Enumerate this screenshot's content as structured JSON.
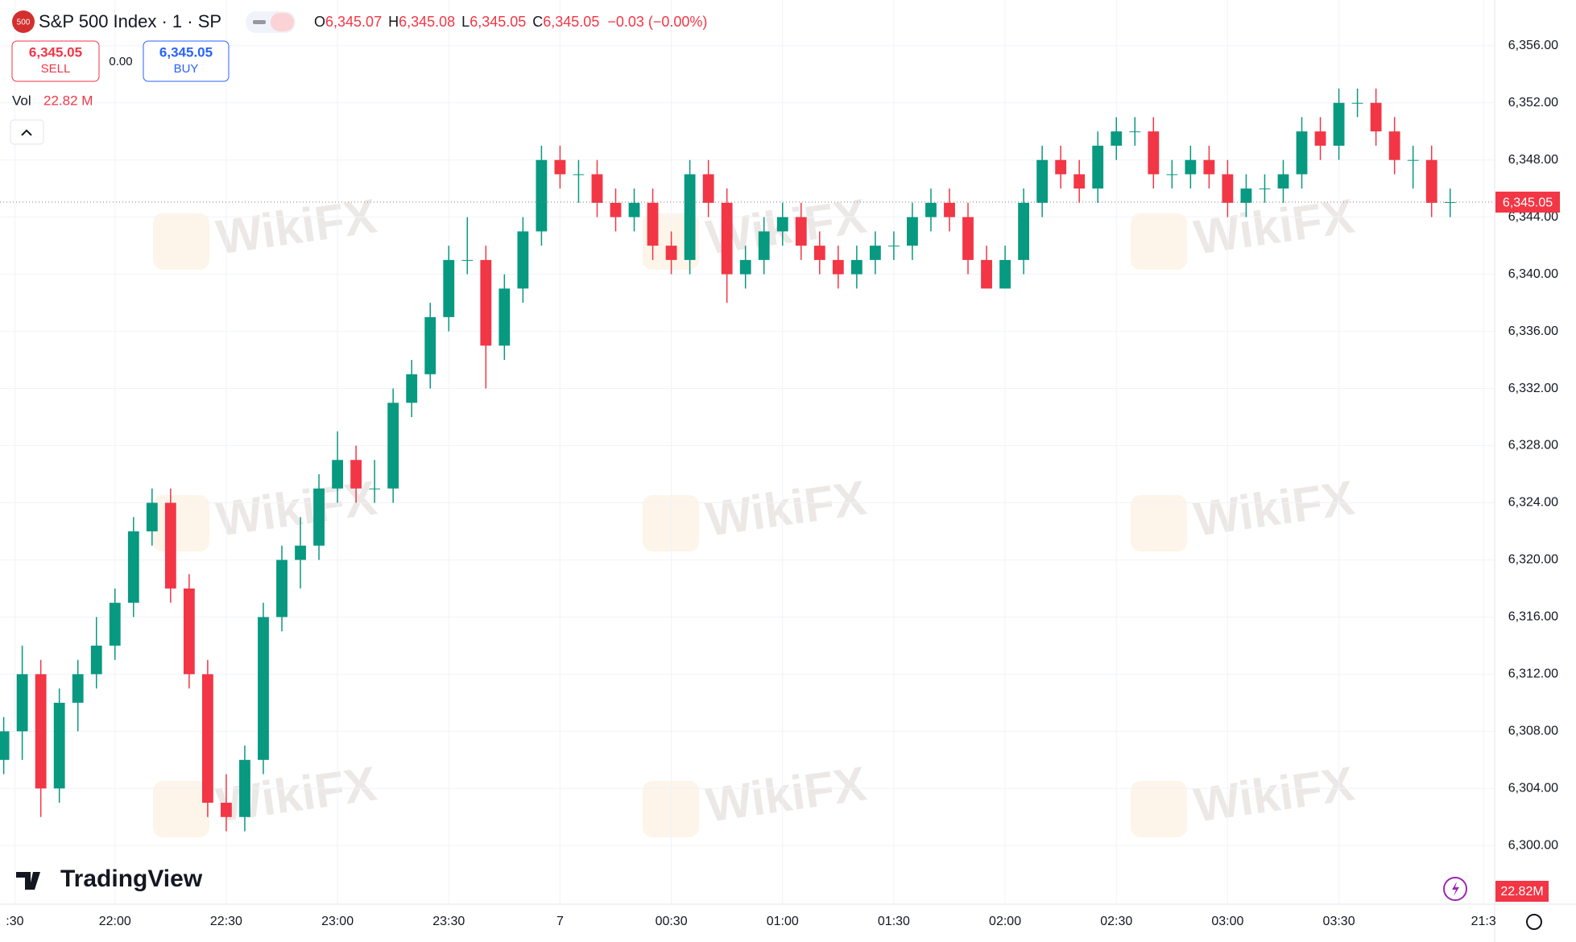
{
  "chart_data": {
    "type": "candlestick",
    "symbol": "500",
    "title": "S&P 500 Index · 1 · SP",
    "ohlc_legend": [
      {
        "key": "O",
        "value": "6,345.07"
      },
      {
        "key": "H",
        "value": "6,345.08"
      },
      {
        "key": "L",
        "value": "6,345.05"
      },
      {
        "key": "C",
        "value": "6,345.05"
      }
    ],
    "change": "−0.03 (−0.00%)",
    "sell": {
      "price": "6,345.05",
      "label": "SELL"
    },
    "spread": "0.00",
    "buy": {
      "price": "6,345.05",
      "label": "BUY"
    },
    "volume": {
      "label": "Vol",
      "value": "22.82 M",
      "badge": "22.82M"
    },
    "brand": "TradingView",
    "watermark": "WikiFX",
    "last_price": {
      "value": 6345.05,
      "label": "6,345.05"
    },
    "up_color": "#089981",
    "down_color": "#f23645",
    "xlim": [
      -151,
      252
    ],
    "xticks": [
      {
        "value": -147,
        "label": ":30"
      },
      {
        "value": -120,
        "label": "22:00"
      },
      {
        "value": -90,
        "label": "22:30"
      },
      {
        "value": -60,
        "label": "23:00"
      },
      {
        "value": -30,
        "label": "23:30"
      },
      {
        "value": 0,
        "label": "7"
      },
      {
        "value": 30,
        "label": "00:30"
      },
      {
        "value": 60,
        "label": "01:00"
      },
      {
        "value": 90,
        "label": "01:30"
      },
      {
        "value": 120,
        "label": "02:00"
      },
      {
        "value": 150,
        "label": "02:30"
      },
      {
        "value": 180,
        "label": "03:00"
      },
      {
        "value": 210,
        "label": "03:30"
      },
      {
        "value": 249,
        "label": "21:3"
      }
    ],
    "ylim": [
      6295.9,
      6359.2
    ],
    "yticks": [
      {
        "value": 6300,
        "label": "6,300.00"
      },
      {
        "value": 6304,
        "label": "6,304.00"
      },
      {
        "value": 6308,
        "label": "6,308.00"
      },
      {
        "value": 6312,
        "label": "6,312.00"
      },
      {
        "value": 6316,
        "label": "6,316.00"
      },
      {
        "value": 6320,
        "label": "6,320.00"
      },
      {
        "value": 6324,
        "label": "6,324.00"
      },
      {
        "value": 6328,
        "label": "6,328.00"
      },
      {
        "value": 6332,
        "label": "6,332.00"
      },
      {
        "value": 6336,
        "label": "6,336.00"
      },
      {
        "value": 6340,
        "label": "6,340.00"
      },
      {
        "value": 6344,
        "label": "6,344.00"
      },
      {
        "value": 6348,
        "label": "6,348.00"
      },
      {
        "value": 6352,
        "label": "6,352.00"
      },
      {
        "value": 6356,
        "label": "6,356.00"
      }
    ],
    "grid": true,
    "x": [
      -150,
      -145,
      -140,
      -135,
      -130,
      -125,
      -120,
      -115,
      -110,
      -105,
      -100,
      -95,
      -90,
      -85,
      -80,
      -75,
      -70,
      -65,
      -60,
      -55,
      -50,
      -45,
      -40,
      -35,
      -30,
      -25,
      -20,
      -15,
      -10,
      -5,
      0,
      5,
      10,
      15,
      20,
      25,
      30,
      35,
      40,
      45,
      50,
      55,
      60,
      65,
      70,
      75,
      80,
      85,
      90,
      95,
      100,
      105,
      110,
      115,
      120,
      125,
      130,
      135,
      140,
      145,
      150,
      155,
      160,
      165,
      170,
      175,
      180,
      185,
      190,
      195,
      200,
      205,
      210,
      215,
      220,
      225,
      230,
      235,
      240
    ],
    "open": [
      6306,
      6308,
      6312,
      6304,
      6310,
      6312,
      6314,
      6317,
      6322,
      6324,
      6318,
      6312,
      6303,
      6302,
      6306,
      6316,
      6320,
      6321,
      6325,
      6327,
      6325,
      6325,
      6331,
      6333,
      6337,
      6341,
      6341,
      6335,
      6339,
      6343,
      6348,
      6347,
      6347,
      6345,
      6344,
      6345,
      6342,
      6341,
      6347,
      6345,
      6340,
      6341,
      6343,
      6344,
      6342,
      6341,
      6340,
      6341,
      6342,
      6342,
      6344,
      6345,
      6344,
      6341,
      6339,
      6341,
      6345,
      6348,
      6347,
      6346,
      6349,
      6350,
      6350,
      6347,
      6347,
      6348,
      6347,
      6345,
      6346,
      6346,
      6347,
      6350,
      6349,
      6352,
      6352,
      6350,
      6348,
      6348,
      6345
    ],
    "high": [
      6309,
      6314,
      6313,
      6311,
      6313,
      6316,
      6318,
      6323,
      6325,
      6325,
      6319,
      6313,
      6305,
      6307,
      6317,
      6321,
      6323,
      6326,
      6329,
      6328,
      6327,
      6332,
      6334,
      6338,
      6342,
      6344,
      6342,
      6340,
      6344,
      6349,
      6349,
      6348,
      6348,
      6346,
      6346,
      6346,
      6343,
      6348,
      6348,
      6346,
      6342,
      6344,
      6345,
      6345,
      6343,
      6342,
      6342,
      6343,
      6343,
      6345,
      6346,
      6346,
      6345,
      6342,
      6342,
      6346,
      6349,
      6349,
      6348,
      6350,
      6351,
      6351,
      6351,
      6348,
      6349,
      6349,
      6348,
      6347,
      6347,
      6348,
      6351,
      6351,
      6353,
      6353,
      6353,
      6351,
      6349,
      6349,
      6346
    ],
    "low": [
      6305,
      6306,
      6302,
      6303,
      6308,
      6311,
      6313,
      6316,
      6321,
      6317,
      6311,
      6302,
      6301,
      6301,
      6305,
      6315,
      6318,
      6320,
      6324,
      6324,
      6324,
      6324,
      6330,
      6332,
      6336,
      6340,
      6332,
      6334,
      6338,
      6342,
      6346,
      6345,
      6344,
      6343,
      6343,
      6341,
      6340,
      6340,
      6344,
      6338,
      6339,
      6340,
      6342,
      6341,
      6340,
      6339,
      6339,
      6340,
      6341,
      6341,
      6343,
      6343,
      6340,
      6339,
      6339,
      6340,
      6344,
      6346,
      6345,
      6345,
      6348,
      6349,
      6346,
      6346,
      6346,
      6346,
      6344,
      6344,
      6345,
      6345,
      6346,
      6348,
      6348,
      6351,
      6349,
      6347,
      6346,
      6344,
      6344
    ],
    "close": [
      6308,
      6312,
      6304,
      6310,
      6312,
      6314,
      6317,
      6322,
      6324,
      6318,
      6312,
      6303,
      6302,
      6306,
      6316,
      6320,
      6321,
      6325,
      6327,
      6325,
      6325,
      6331,
      6333,
      6337,
      6341,
      6341,
      6335,
      6339,
      6343,
      6348,
      6347,
      6347,
      6345,
      6344,
      6345,
      6342,
      6341,
      6347,
      6345,
      6340,
      6341,
      6343,
      6344,
      6342,
      6341,
      6340,
      6341,
      6342,
      6342,
      6344,
      6345,
      6344,
      6341,
      6339,
      6341,
      6345,
      6348,
      6347,
      6346,
      6349,
      6350,
      6350,
      6347,
      6347,
      6348,
      6347,
      6345,
      6346,
      6346,
      6347,
      6350,
      6349,
      6352,
      6352,
      6350,
      6348,
      6348,
      6345,
      6345.05
    ]
  }
}
